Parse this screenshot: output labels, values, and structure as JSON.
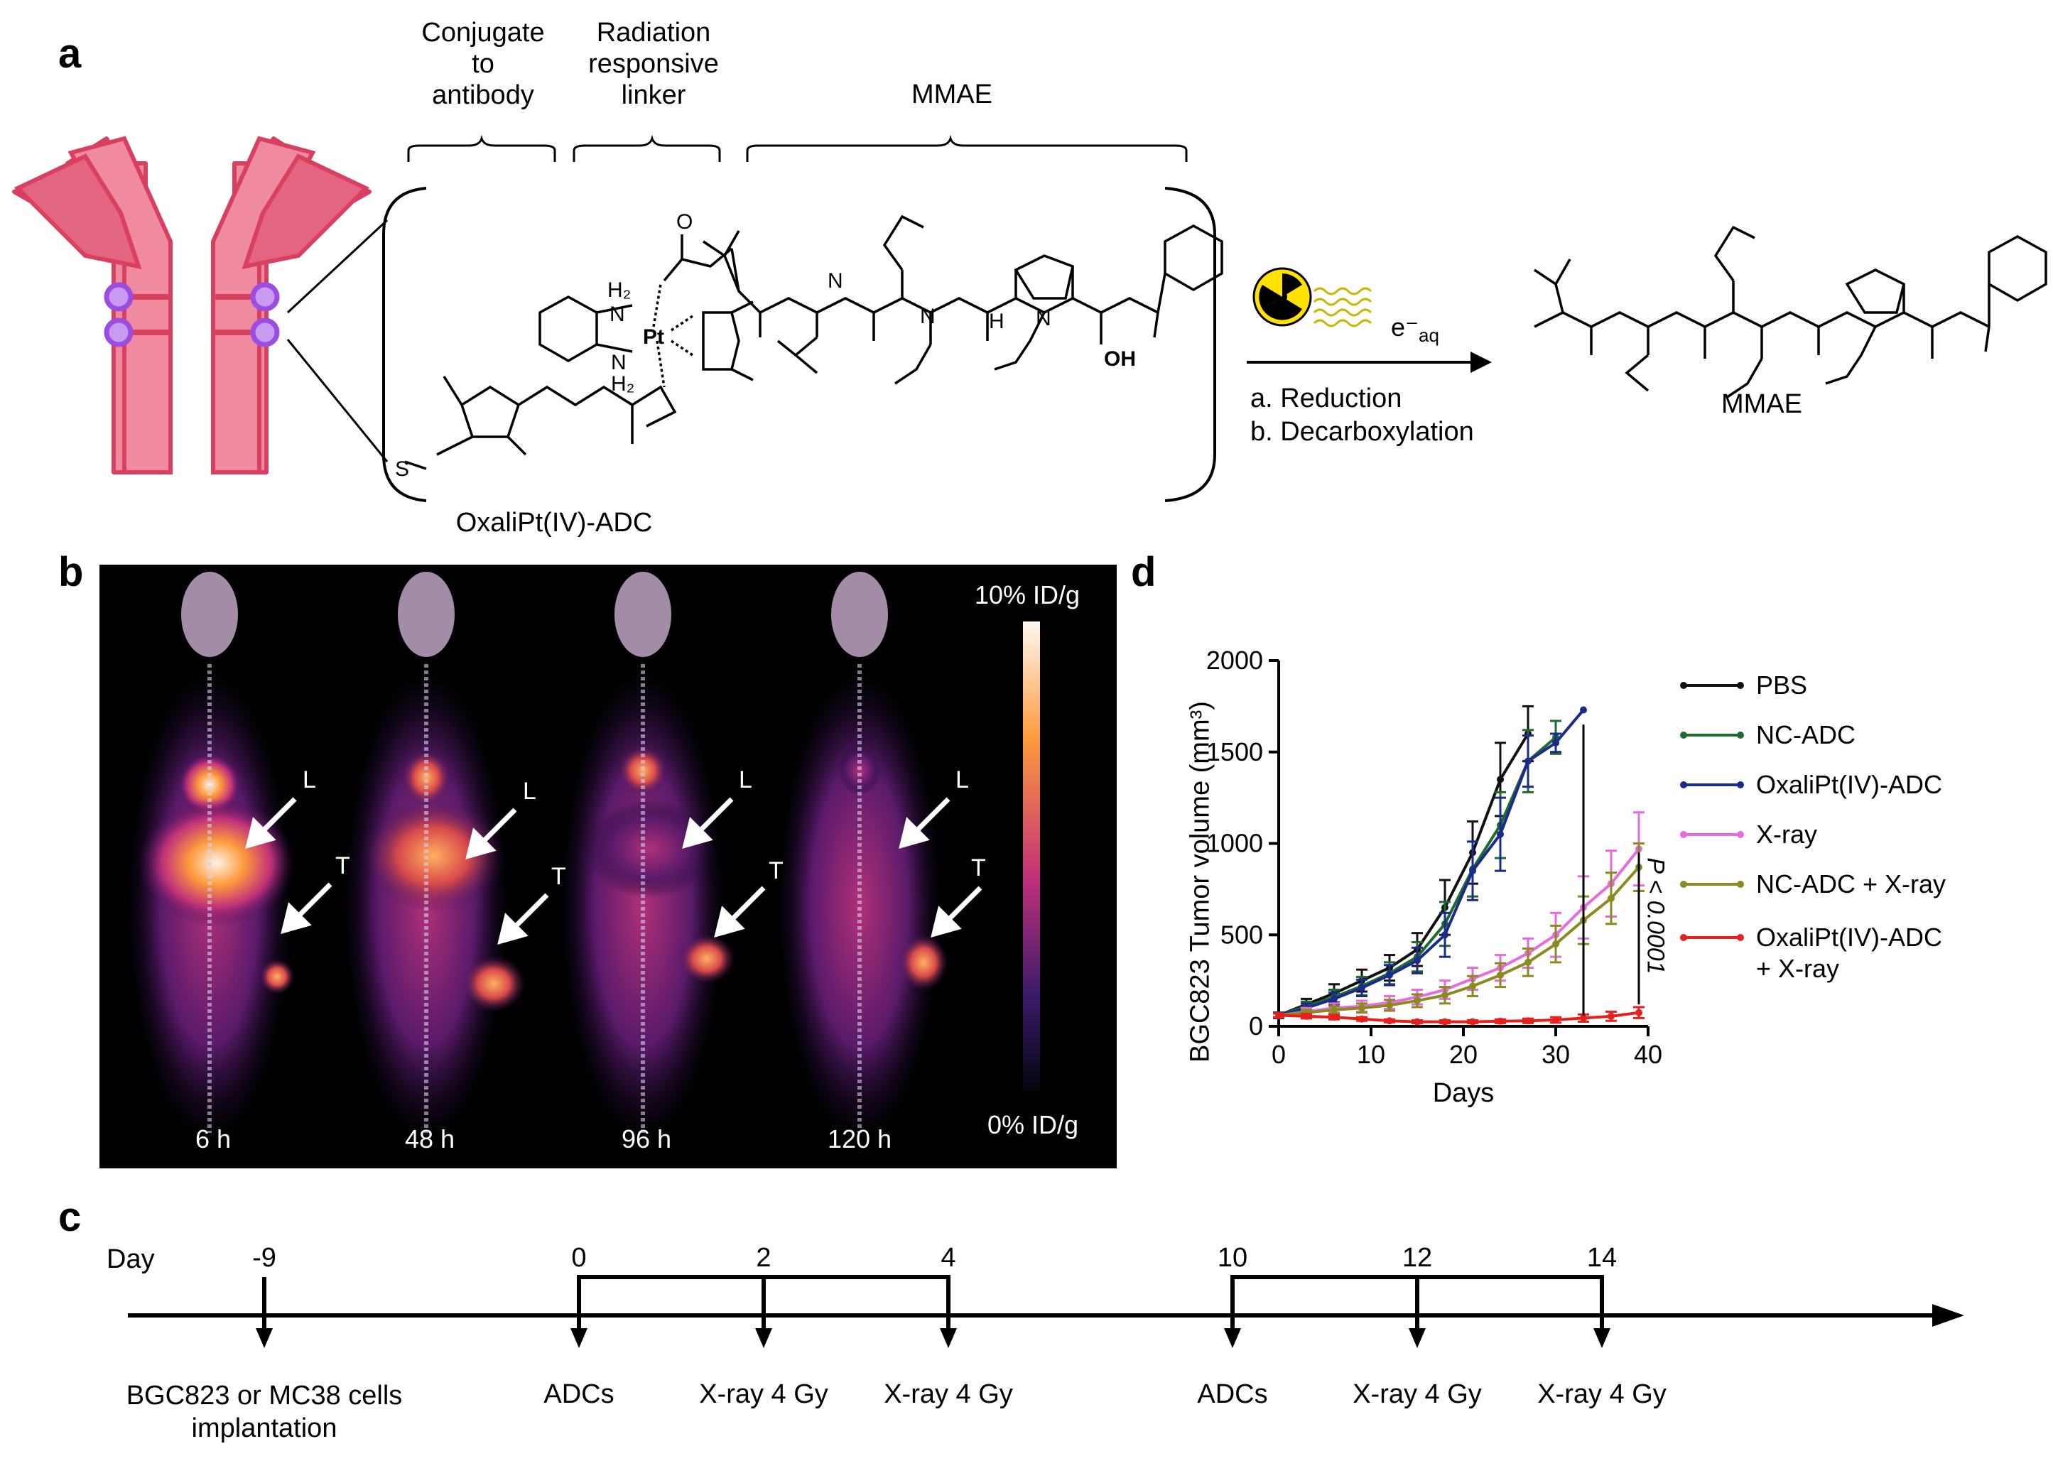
{
  "panel_labels": {
    "a": "a",
    "b": "b",
    "c": "c",
    "d": "d"
  },
  "panel_a": {
    "group_labels": [
      "Conjugate\nto\nantibody",
      "Radiation\nresponsive\nlinker",
      "MMAE"
    ],
    "compound_name": "OxaliPt(IV)-ADC",
    "reaction_electron": "e⁻",
    "reaction_electron_sub": "aq",
    "reaction_steps": [
      "a. Reduction",
      "b. Decarboxylation"
    ],
    "product_name": "MMAE",
    "atom_labels": {
      "H2_top": "H₂",
      "N_top": "N",
      "Pt": "Pt",
      "N_bottom": "N",
      "H2_bottom": "H₂",
      "O": "O",
      "N": "N",
      "H": "H",
      "S": "S",
      "OH": "OH"
    },
    "colors": {
      "antibody_fill": "#f08aa0",
      "antibody_dark": "#d9405f",
      "linker": "#9b4de0",
      "radiation_yellow": "#ffe200"
    }
  },
  "panel_b": {
    "colorbar_max": "10% ID/g",
    "colorbar_min": "0% ID/g",
    "time_labels": [
      "6 h",
      "48 h",
      "96 h",
      "120 h"
    ],
    "arrow_labels": {
      "liver": "L",
      "tumor": "T"
    }
  },
  "panel_c": {
    "day_label": "Day",
    "days": [
      "-9",
      "0",
      "2",
      "4",
      "10",
      "12",
      "14"
    ],
    "events": [
      "BGC823 or MC38 cells\nimplantation",
      "ADCs",
      "X-ray 4 Gy",
      "X-ray 4 Gy",
      "ADCs",
      "X-ray 4 Gy",
      "X-ray 4 Gy"
    ]
  },
  "chart_data": {
    "type": "line",
    "xlabel": "Days",
    "ylabel": "BGC823 Tumor volume (mm³)",
    "xlim": [
      0,
      40
    ],
    "ylim": [
      0,
      2000
    ],
    "xticks": [
      0,
      10,
      20,
      30,
      40
    ],
    "yticks": [
      0,
      500,
      1000,
      1500,
      2000
    ],
    "legend_position": "right",
    "annotation": "P < 0.0001",
    "series": [
      {
        "name": "PBS",
        "color": "#111111",
        "x": [
          0,
          3,
          6,
          9,
          12,
          15,
          18,
          21,
          24,
          27
        ],
        "y": [
          60,
          120,
          180,
          250,
          320,
          420,
          650,
          950,
          1350,
          1600
        ],
        "err": [
          15,
          30,
          50,
          60,
          70,
          90,
          150,
          170,
          200,
          150
        ]
      },
      {
        "name": "NC-ADC",
        "color": "#1e6b2e",
        "x": [
          0,
          3,
          6,
          9,
          12,
          15,
          18,
          21,
          24,
          27,
          30
        ],
        "y": [
          60,
          110,
          160,
          220,
          290,
          380,
          560,
          860,
          1100,
          1450,
          1580
        ],
        "err": [
          15,
          25,
          40,
          50,
          60,
          80,
          120,
          150,
          180,
          170,
          90
        ]
      },
      {
        "name": "OxaliPt(IV)-ADC",
        "color": "#1a2b8c",
        "x": [
          0,
          3,
          6,
          9,
          12,
          15,
          18,
          21,
          24,
          27,
          30,
          33
        ],
        "y": [
          60,
          100,
          150,
          210,
          280,
          360,
          500,
          850,
          1050,
          1450,
          1550,
          1730
        ],
        "err": [
          15,
          25,
          35,
          45,
          55,
          70,
          120,
          160,
          200,
          140,
          50,
          0
        ]
      },
      {
        "name": "X-ray",
        "color": "#e86adf",
        "x": [
          0,
          3,
          6,
          9,
          12,
          15,
          18,
          21,
          24,
          27,
          30,
          33,
          36,
          39
        ],
        "y": [
          60,
          80,
          100,
          110,
          130,
          160,
          200,
          260,
          320,
          400,
          500,
          650,
          780,
          970
        ],
        "err": [
          10,
          20,
          25,
          30,
          35,
          40,
          50,
          60,
          70,
          80,
          120,
          170,
          180,
          200
        ]
      },
      {
        "name": "NC-ADC + X-ray",
        "color": "#8a8a1e",
        "x": [
          0,
          3,
          6,
          9,
          12,
          15,
          18,
          21,
          24,
          27,
          30,
          33,
          36,
          39
        ],
        "y": [
          60,
          75,
          90,
          100,
          115,
          140,
          170,
          220,
          280,
          350,
          450,
          580,
          700,
          870
        ],
        "err": [
          10,
          15,
          20,
          25,
          30,
          35,
          45,
          55,
          65,
          75,
          100,
          130,
          140,
          130
        ]
      },
      {
        "name": "OxaliPt(IV)-ADC\n+ X-ray",
        "color": "#e8201c",
        "x": [
          0,
          3,
          6,
          9,
          12,
          15,
          18,
          21,
          24,
          27,
          30,
          33,
          36,
          39
        ],
        "y": [
          60,
          55,
          50,
          40,
          30,
          25,
          25,
          25,
          28,
          30,
          35,
          45,
          55,
          75
        ],
        "err": [
          10,
          12,
          12,
          10,
          8,
          8,
          8,
          8,
          10,
          12,
          15,
          20,
          25,
          30
        ]
      }
    ]
  }
}
